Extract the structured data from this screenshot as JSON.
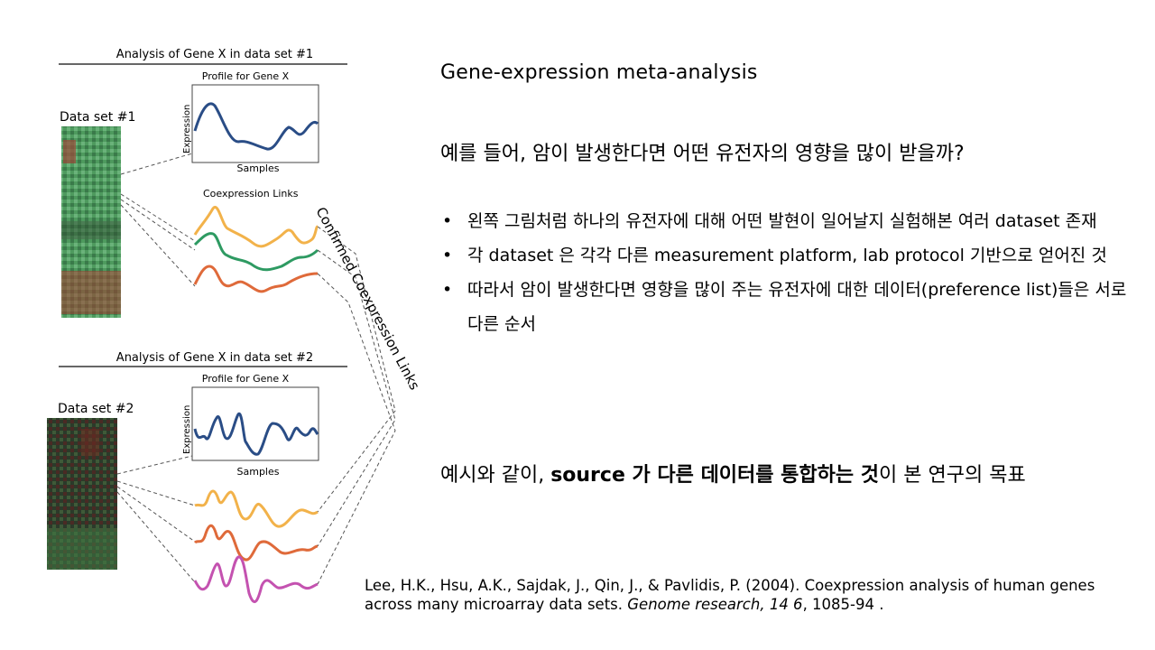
{
  "slide": {
    "title": "Gene-expression meta-analysis",
    "question": "예를 들어, 암이 발생한다면 어떤 유전자의 영향을 많이 받을까?",
    "bullets": [
      "왼쪽 그림처럼 하나의 유전자에 대해 어떤 발현이 일어날지 실험해본 여러 dataset 존재",
      "각 dataset 은 각각 다른 measurement platform, lab protocol 기반으로 얻어진 것",
      "따라서 암이 발생한다면 영향을 많이 주는 유전자에 대한 데이터(preference list)들은 서로 다른 순서"
    ],
    "goal": {
      "prefix": "예시와 같이, ",
      "bold": "source 가 다른 데이터를 통합하는 것",
      "suffix": "이 본 연구의 목표"
    },
    "reference": {
      "authors": "Lee, H.K., Hsu, A.K., Sajdak, J., Qin, J., & Pavlidis, P. (2004). Coexpression analysis of human genes across many microarray data sets. ",
      "journal": "Genome research, 14 6",
      "pages": ", 1085-94 ."
    }
  },
  "figure": {
    "panel1_title": "Analysis of Gene X in data set #1",
    "panel2_title": "Analysis of Gene X in data set #2",
    "dataset1_label": "Data set #1",
    "dataset2_label": "Data set #2",
    "profile_title_1": "Profile for Gene X",
    "profile_title_2": "Profile for Gene X",
    "ylabel_1": "Expression",
    "ylabel_2": "Expression",
    "xlabel_1": "Samples",
    "xlabel_2": "Samples",
    "coexpression_label": "Coexpression Links",
    "confirmed_label": "Confirmed Coexpression Links",
    "colors": {
      "blue": "#2a4d86",
      "yellow": "#f2b24a",
      "green": "#2e9a62",
      "orange": "#df6a3a",
      "magenta": "#c452b0",
      "heat_green": "#3f8a52",
      "heat_red": "#a0332a"
    }
  }
}
